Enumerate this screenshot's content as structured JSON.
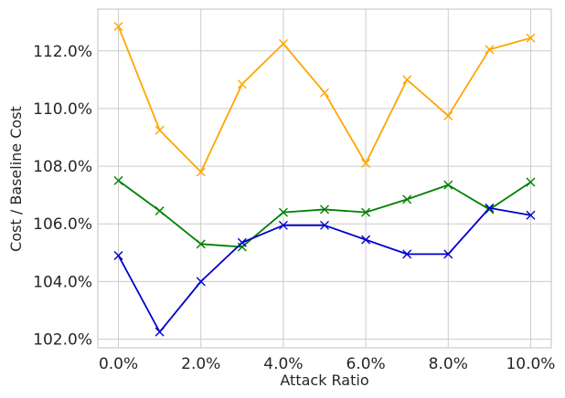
{
  "chart_data": {
    "type": "line",
    "xlabel": "Attack Ratio",
    "ylabel": "Cost / Baseline Cost",
    "x": [
      0,
      1,
      2,
      3,
      4,
      5,
      6,
      7,
      8,
      9,
      10
    ],
    "x_ticks": [
      0,
      2,
      4,
      6,
      8,
      10
    ],
    "x_tick_labels": [
      "0.0%",
      "2.0%",
      "4.0%",
      "6.0%",
      "8.0%",
      "10.0%"
    ],
    "xlim": [
      -0.5,
      10.5
    ],
    "y_ticks": [
      102,
      104,
      106,
      108,
      110,
      112
    ],
    "y_tick_labels": [
      "102.0%",
      "104.0%",
      "106.0%",
      "108.0%",
      "110.0%",
      "112.0%"
    ],
    "ylim": [
      101.7,
      113.45
    ],
    "grid": true,
    "marker": "x",
    "series": [
      {
        "color": "#ffa500",
        "values": [
          112.85,
          109.25,
          107.8,
          110.85,
          112.25,
          110.55,
          108.1,
          111.0,
          109.75,
          112.05,
          112.45
        ]
      },
      {
        "color": "#008000",
        "values": [
          107.5,
          106.45,
          105.3,
          105.2,
          106.4,
          106.5,
          106.4,
          106.85,
          107.35,
          106.5,
          107.45
        ]
      },
      {
        "color": "#0000cd",
        "values": [
          104.9,
          102.25,
          104.0,
          105.35,
          105.95,
          105.95,
          105.45,
          104.95,
          104.95,
          106.55,
          106.3
        ]
      }
    ]
  }
}
